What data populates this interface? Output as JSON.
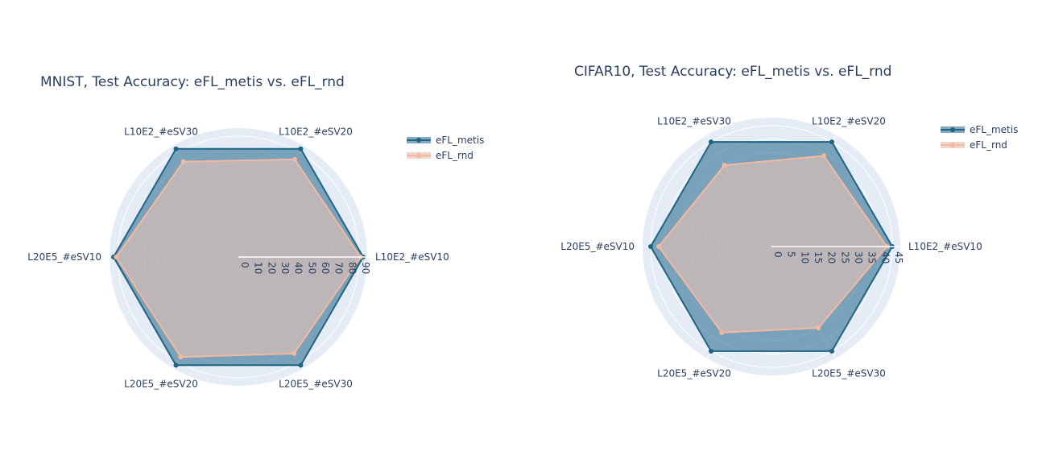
{
  "colors": {
    "metis_line": "#1f6484",
    "metis_fill": "#2e6f93",
    "rnd_line": "#f3b8a0",
    "rnd_fill": "#e8c4b6",
    "polar_bg": "#e5ecf6",
    "grid": "#ffffff",
    "text": "#2a3f5f"
  },
  "chart_data": [
    {
      "type": "radar",
      "title": "MNIST, Test Accuracy: eFL_metis vs. eFL_rnd",
      "categories": [
        "L10E2_#eSV10",
        "L10E2_#eSV20",
        "L10E2_#eSV30",
        "L20E5_#eSV10",
        "L20E5_#eSV20",
        "L20E5_#eSV30"
      ],
      "radial_range": [
        0,
        96
      ],
      "radial_ticks": [
        0,
        10,
        20,
        30,
        40,
        50,
        60,
        70,
        80,
        90
      ],
      "series": [
        {
          "name": "eFL_metis",
          "values": [
            93,
            93,
            93,
            93,
            93,
            93
          ]
        },
        {
          "name": "eFL_rnd",
          "values": [
            91,
            84,
            82,
            91,
            86,
            83
          ]
        }
      ],
      "legend_position": "top-right"
    },
    {
      "type": "radar",
      "title": "CIFAR10, Test Accuracy: eFL_metis vs. eFL_rnd",
      "categories": [
        "L10E2_#eSV10",
        "L10E2_#eSV20",
        "L10E2_#eSV30",
        "L20E5_#eSV10",
        "L20E5_#eSV20",
        "L20E5_#eSV30"
      ],
      "radial_range": [
        0,
        48
      ],
      "radial_ticks": [
        0,
        5,
        10,
        15,
        20,
        25,
        30,
        35,
        40,
        45
      ],
      "series": [
        {
          "name": "eFL_metis",
          "values": [
            45,
            45,
            45,
            45,
            45,
            45
          ]
        },
        {
          "name": "eFL_rnd",
          "values": [
            43,
            39,
            35,
            42,
            37,
            35
          ]
        }
      ],
      "legend_position": "top-right"
    }
  ]
}
